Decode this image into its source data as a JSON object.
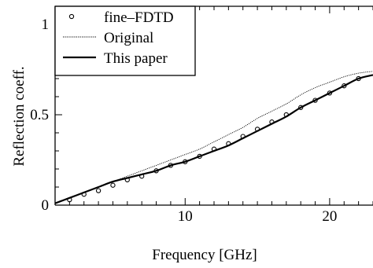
{
  "chart_data": {
    "type": "line",
    "xlabel": "Frequency  [GHz]",
    "ylabel": "Reflection coeff.",
    "xlim": [
      1,
      23
    ],
    "ylim": [
      0,
      1.1
    ],
    "x_ticks": [
      10,
      20
    ],
    "y_ticks": [
      0,
      0.5,
      1
    ],
    "x_tick_labels": [
      "10",
      "20"
    ],
    "y_tick_labels": [
      "0",
      "0.5",
      "1"
    ],
    "grid": false,
    "legend_position": "top-left",
    "series": [
      {
        "name": "fine–FDTD",
        "style": "markers",
        "x": [
          2,
          3,
          4,
          5,
          6,
          7,
          8,
          9,
          10,
          11,
          12,
          13,
          14,
          15,
          16,
          17,
          18,
          19,
          20,
          21,
          22
        ],
        "y": [
          0.03,
          0.06,
          0.08,
          0.11,
          0.14,
          0.16,
          0.19,
          0.22,
          0.24,
          0.27,
          0.31,
          0.34,
          0.38,
          0.42,
          0.46,
          0.5,
          0.54,
          0.58,
          0.62,
          0.66,
          0.7
        ]
      },
      {
        "name": "Original",
        "style": "thin-dotted",
        "x": [
          1,
          2,
          3,
          4,
          5,
          6,
          7,
          8,
          9,
          10,
          11,
          12,
          13,
          14,
          15,
          16,
          17,
          18,
          19,
          20,
          21,
          22,
          23
        ],
        "y": [
          0.01,
          0.04,
          0.07,
          0.1,
          0.13,
          0.16,
          0.19,
          0.22,
          0.25,
          0.28,
          0.31,
          0.35,
          0.39,
          0.43,
          0.48,
          0.52,
          0.56,
          0.61,
          0.65,
          0.68,
          0.71,
          0.73,
          0.74
        ]
      },
      {
        "name": "This  paper",
        "style": "thick-solid",
        "x": [
          1,
          2,
          3,
          4,
          5,
          6,
          7,
          8,
          9,
          10,
          11,
          12,
          13,
          14,
          15,
          16,
          17,
          18,
          19,
          20,
          21,
          22,
          23
        ],
        "y": [
          0.01,
          0.04,
          0.07,
          0.1,
          0.13,
          0.15,
          0.17,
          0.19,
          0.22,
          0.24,
          0.27,
          0.3,
          0.33,
          0.37,
          0.41,
          0.45,
          0.49,
          0.54,
          0.58,
          0.62,
          0.66,
          0.7,
          0.72
        ]
      }
    ]
  }
}
